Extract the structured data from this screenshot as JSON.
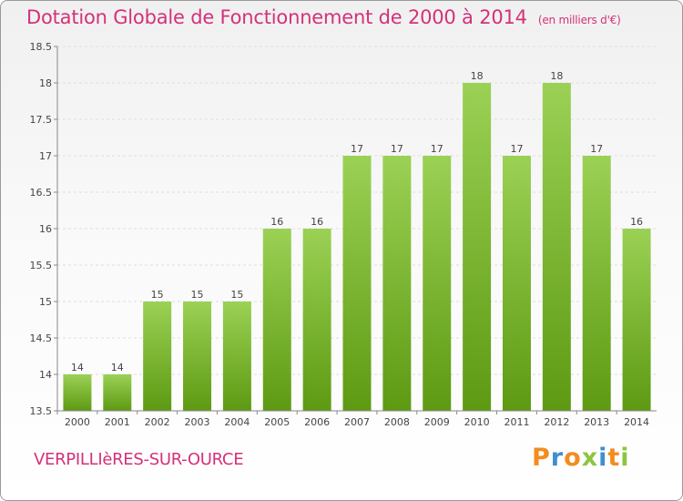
{
  "title": "Dotation Globale de Fonctionnement de 2000 à 2014",
  "subtitle": "(en milliers d'€)",
  "commune": "VERPILLIèRES-SUR-OURCE",
  "brand": {
    "letters": [
      "P",
      "r",
      "o",
      "x",
      "i",
      "t",
      "i"
    ],
    "colors": [
      "#f28c1f",
      "#3d8fd1",
      "#f28c1f",
      "#8cc63f",
      "#3d8fd1",
      "#f28c1f",
      "#8cc63f"
    ]
  },
  "colors": {
    "bar_top": "#9bd155",
    "bar_bottom": "#5d9a12",
    "accent": "#d4317a"
  },
  "chart_data": {
    "type": "bar",
    "categories": [
      "2000",
      "2001",
      "2002",
      "2003",
      "2004",
      "2005",
      "2006",
      "2007",
      "2008",
      "2009",
      "2010",
      "2011",
      "2012",
      "2013",
      "2014"
    ],
    "values": [
      14,
      14,
      15,
      15,
      15,
      16,
      16,
      17,
      17,
      17,
      18,
      17,
      18,
      17,
      16
    ],
    "data_labels": [
      "14",
      "14",
      "15",
      "15",
      "15",
      "16",
      "16",
      "17",
      "17",
      "17",
      "18",
      "17",
      "18",
      "17",
      "16"
    ],
    "ylim": [
      13.5,
      18.5
    ],
    "yticks": [
      13.5,
      14,
      14.5,
      15,
      15.5,
      16,
      16.5,
      17,
      17.5,
      18,
      18.5
    ],
    "ytick_labels": [
      "13.5",
      "14",
      "14.5",
      "15",
      "15.5",
      "16",
      "16.5",
      "17",
      "17.5",
      "18",
      "18.5"
    ],
    "grid": true
  }
}
